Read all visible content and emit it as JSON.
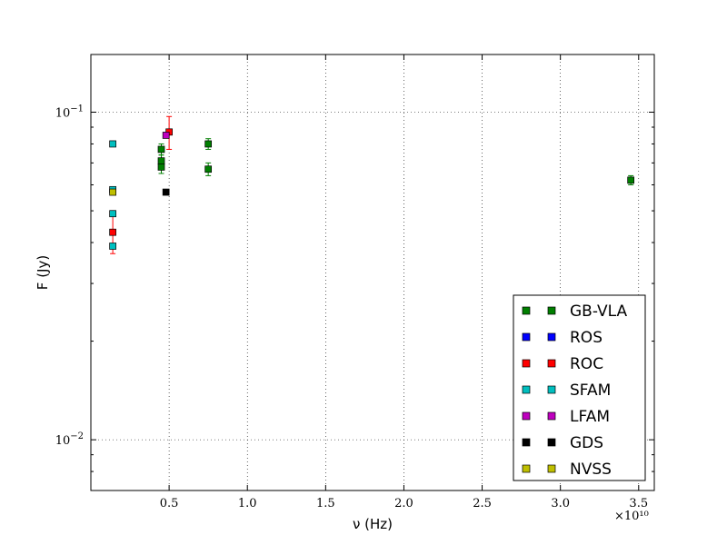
{
  "chart_data": {
    "type": "scatter",
    "title": "",
    "xlabel": "ν (Hz)",
    "ylabel": "F (Jy)",
    "x_offset_label": "×10¹⁰",
    "xlim": [
      0,
      36000000000.0
    ],
    "ylim": [
      0.007,
      0.15
    ],
    "yscale": "log",
    "grid": true,
    "legend_position": "lower-right",
    "x_ticks": [
      {
        "value": 5000000000.0,
        "label": "0.5"
      },
      {
        "value": 10000000000.0,
        "label": "1.0"
      },
      {
        "value": 15000000000.0,
        "label": "1.5"
      },
      {
        "value": 20000000000.0,
        "label": "2.0"
      },
      {
        "value": 25000000000.0,
        "label": "2.5"
      },
      {
        "value": 30000000000.0,
        "label": "3.0"
      },
      {
        "value": 35000000000.0,
        "label": "3.5"
      }
    ],
    "y_ticks": [
      {
        "value": 0.01,
        "base": "10",
        "exp": "−2"
      },
      {
        "value": 0.1,
        "base": "10",
        "exp": "−1"
      }
    ],
    "series": [
      {
        "name": "GB-VLA",
        "color": "#007f00",
        "points": [
          {
            "x": 4500000000.0,
            "y": 0.077,
            "err": 0.003
          },
          {
            "x": 4500000000.0,
            "y": 0.071,
            "err": 0.003
          },
          {
            "x": 4500000000.0,
            "y": 0.068,
            "err": 0.003
          },
          {
            "x": 7500000000.0,
            "y": 0.08,
            "err": 0.003
          },
          {
            "x": 7500000000.0,
            "y": 0.067,
            "err": 0.003
          },
          {
            "x": 34500000000.0,
            "y": 0.062,
            "err": 0.002
          }
        ]
      },
      {
        "name": "ROS",
        "color": "#0000ff",
        "points": []
      },
      {
        "name": "ROC",
        "color": "#ff0000",
        "points": [
          {
            "x": 1400000000.0,
            "y": 0.043,
            "err": 0.006
          },
          {
            "x": 5000000000.0,
            "y": 0.087,
            "err": 0.01
          }
        ]
      },
      {
        "name": "SFAM",
        "color": "#00bfbf",
        "points": [
          {
            "x": 1400000000.0,
            "y": 0.08,
            "err": 0
          },
          {
            "x": 1400000000.0,
            "y": 0.058,
            "err": 0
          },
          {
            "x": 1400000000.0,
            "y": 0.049,
            "err": 0
          },
          {
            "x": 1400000000.0,
            "y": 0.039,
            "err": 0
          }
        ]
      },
      {
        "name": "LFAM",
        "color": "#bf00bf",
        "points": [
          {
            "x": 4800000000.0,
            "y": 0.085,
            "err": 0
          }
        ]
      },
      {
        "name": "GDS",
        "color": "#000000",
        "points": [
          {
            "x": 4800000000.0,
            "y": 0.057,
            "err": 0
          }
        ]
      },
      {
        "name": "NVSS",
        "color": "#bfbf00",
        "points": [
          {
            "x": 1400000000.0,
            "y": 0.057,
            "err": 0
          }
        ]
      }
    ]
  }
}
